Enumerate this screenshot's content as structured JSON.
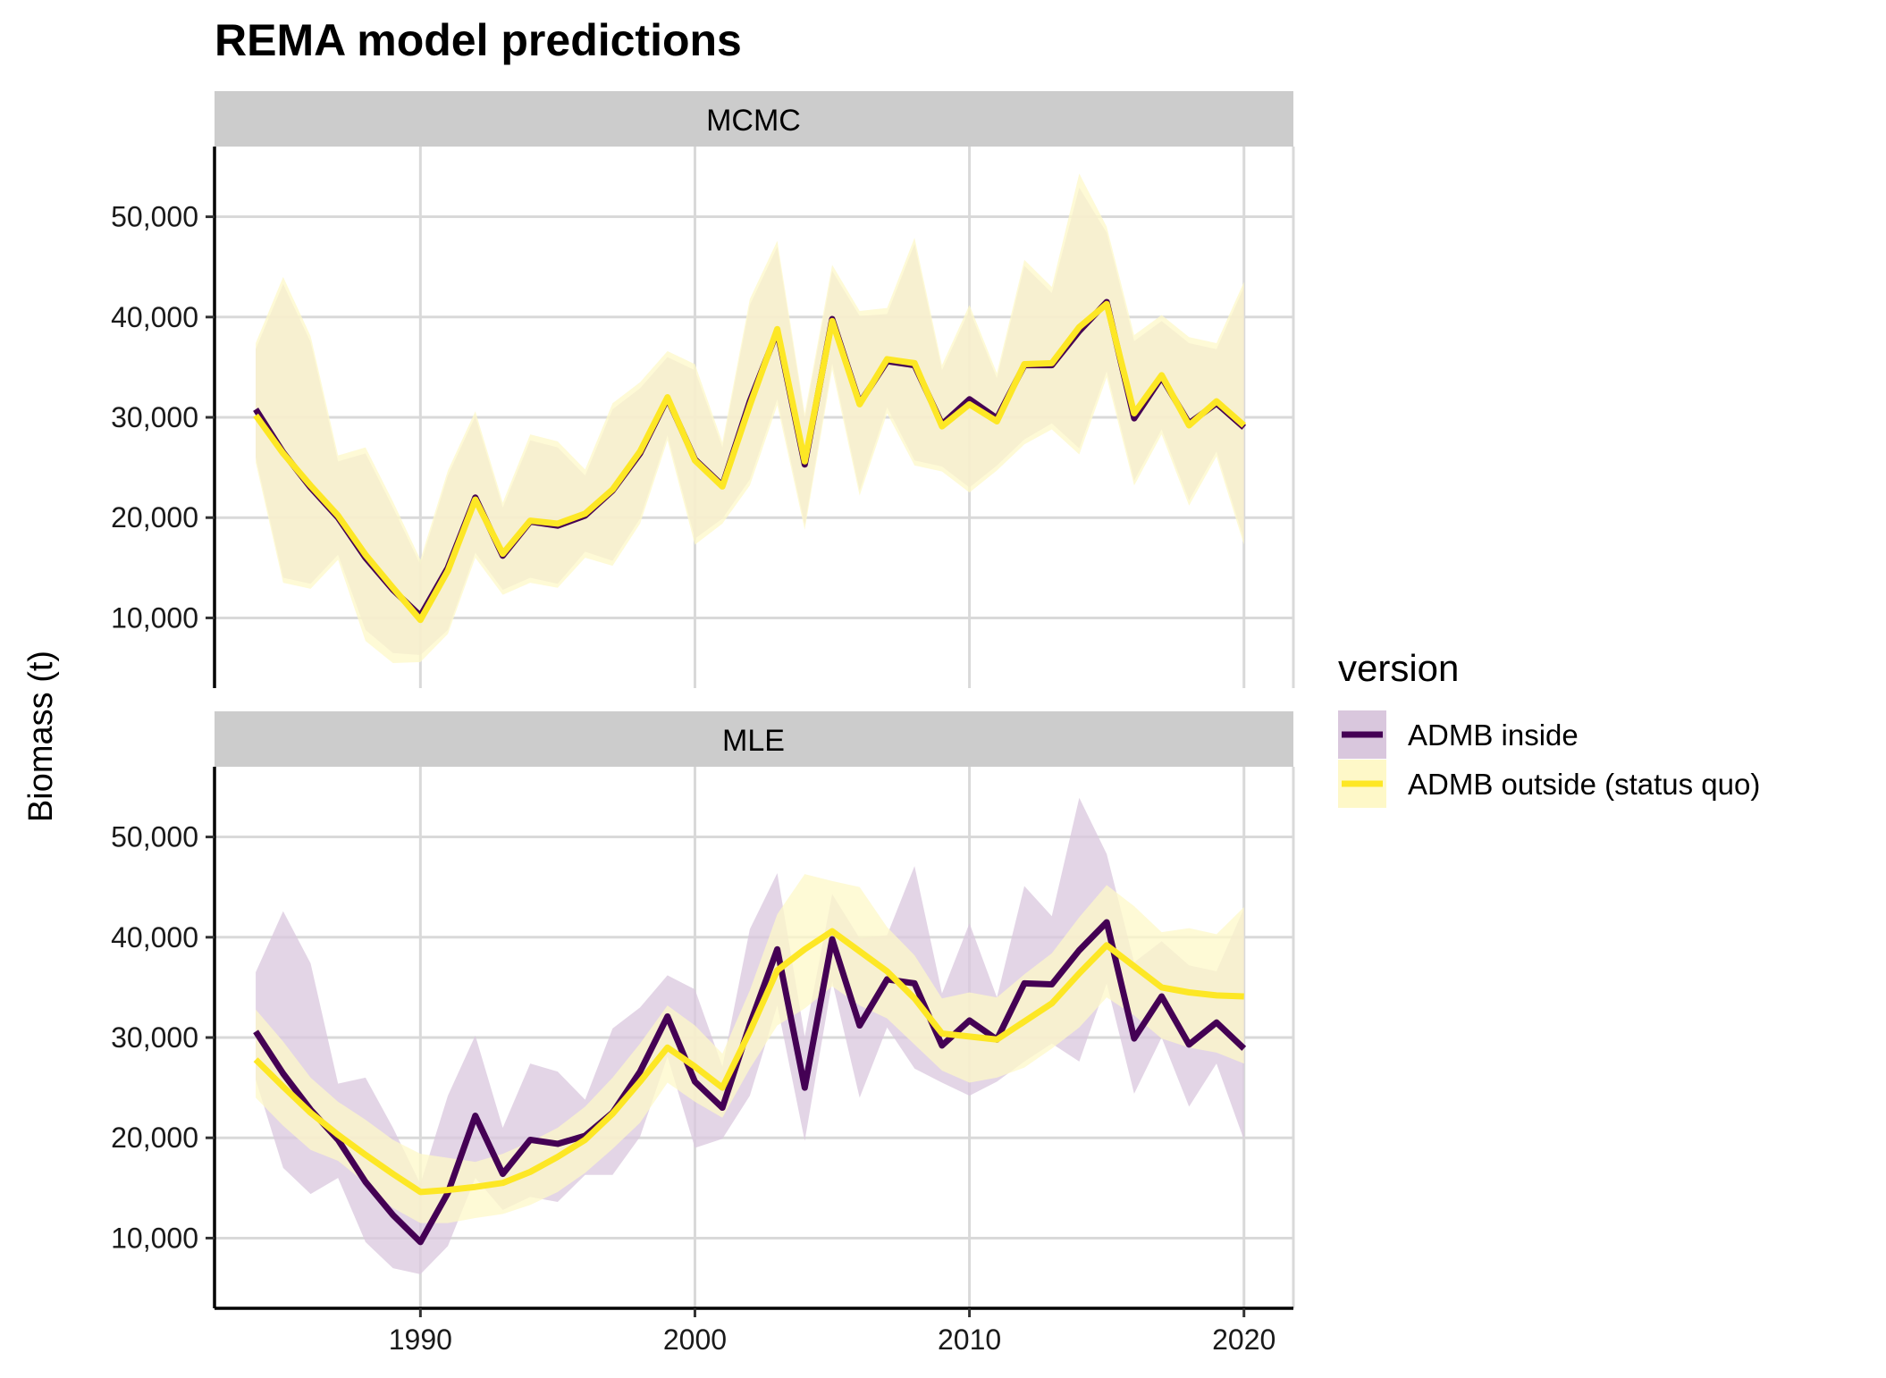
{
  "chart_data": {
    "type": "line",
    "title": "REMA model predictions",
    "ylabel": "Biomass (t)",
    "xlabel": "",
    "xlim": [
      1982.5,
      2021.8
    ],
    "ylim": [
      3000,
      57000
    ],
    "x_ticks": [
      1990,
      2000,
      2010,
      2020
    ],
    "x_tick_labels": [
      "1990",
      "2000",
      "2010",
      "2020"
    ],
    "y_ticks": [
      10000,
      20000,
      30000,
      40000,
      50000
    ],
    "y_tick_labels": [
      "10,000",
      "20,000",
      "30,000",
      "40,000",
      "50,000"
    ],
    "grid": true,
    "legend": {
      "title": "version",
      "position": "right",
      "entries": [
        {
          "label": "ADMB inside",
          "line_color": "#440154",
          "fill_color": "#d9c7dd"
        },
        {
          "label": "ADMB outside (status quo)",
          "line_color": "#fde725",
          "fill_color": "#fef8c8"
        }
      ]
    },
    "years": [
      1984,
      1985,
      1986,
      1987,
      1988,
      1989,
      1990,
      1991,
      1992,
      1993,
      1994,
      1995,
      1996,
      1997,
      1998,
      1999,
      2000,
      2001,
      2002,
      2003,
      2004,
      2005,
      2006,
      2007,
      2008,
      2009,
      2010,
      2011,
      2012,
      2013,
      2014,
      2015,
      2016,
      2017,
      2018,
      2019,
      2020
    ],
    "panels": [
      {
        "name": "MCMC",
        "series": [
          {
            "name": "ADMB inside",
            "color": "#440154",
            "fill": "#d9c7dd",
            "values": [
              30800,
              26500,
              23000,
              20000,
              16000,
              12800,
              10200,
              15000,
              22000,
              16200,
              19600,
              19200,
              20200,
              22700,
              26400,
              31900,
              25800,
              23200,
              31600,
              38600,
              25300,
              39800,
              31400,
              35600,
              35200,
              29300,
              31800,
              29900,
              35200,
              35200,
              38600,
              41500,
              29900,
              34000,
              29400,
              31400,
              29000
            ],
            "lower": [
              26000,
              14000,
              13400,
              16300,
              8800,
              6500,
              6300,
              8800,
              16500,
              12800,
              14000,
              13400,
              16600,
              15700,
              19900,
              28200,
              17900,
              19900,
              23800,
              31800,
              19300,
              35400,
              22700,
              31000,
              25700,
              25100,
              23000,
              25200,
              27800,
              29400,
              26900,
              34600,
              23700,
              28800,
              21700,
              26600,
              17800
            ],
            "upper": [
              36800,
              43300,
              37500,
              25600,
              26400,
              21000,
              15300,
              24200,
              30100,
              21000,
              27700,
              27000,
              24200,
              30800,
              32900,
              36000,
              34700,
              27000,
              41200,
              47000,
              29900,
              44600,
              40100,
              40300,
              47300,
              34700,
              40700,
              33900,
              45100,
              42400,
              52900,
              48400,
              37600,
              39600,
              37400,
              36800,
              43000
            ]
          },
          {
            "name": "ADMB outside (status quo)",
            "color": "#fde725",
            "fill": "#fef8c8",
            "values": [
              30200,
              26400,
              23200,
              20200,
              16300,
              13000,
              9800,
              14700,
              21800,
              16400,
              19700,
              19400,
              20400,
              22800,
              26600,
              32000,
              25700,
              23100,
              31200,
              38800,
              25600,
              39600,
              31300,
              35800,
              35400,
              29100,
              31300,
              29600,
              35300,
              35400,
              39000,
              41300,
              30400,
              34200,
              29200,
              31600,
              29200
            ],
            "lower": [
              25500,
              13500,
              12900,
              15800,
              7700,
              5500,
              5600,
              8400,
              16000,
              12300,
              13500,
              13000,
              16000,
              15200,
              19400,
              27700,
              17300,
              19400,
              23200,
              31200,
              18800,
              34800,
              22200,
              30400,
              25200,
              24600,
              22500,
              24700,
              27300,
              28800,
              26300,
              34000,
              23200,
              28300,
              21200,
              26100,
              17300
            ],
            "upper": [
              37400,
              44000,
              38100,
              26200,
              27000,
              21600,
              15800,
              24700,
              30600,
              21500,
              28300,
              27600,
              24800,
              31400,
              33500,
              36600,
              35300,
              27500,
              41800,
              47600,
              30400,
              45200,
              40600,
              40900,
              47900,
              35200,
              41200,
              34400,
              45700,
              43000,
              54300,
              49000,
              38200,
              40200,
              38000,
              37400,
              43500
            ]
          }
        ]
      },
      {
        "name": "MLE",
        "series": [
          {
            "name": "ADMB inside",
            "color": "#440154",
            "fill": "#d9c7dd",
            "values": [
              30600,
              26400,
              22800,
              19800,
              15600,
              12300,
              9600,
              14500,
              22200,
              16400,
              19800,
              19400,
              20200,
              22500,
              26600,
              32100,
              25600,
              23000,
              31300,
              38800,
              25000,
              39800,
              31200,
              35800,
              35400,
              29200,
              31700,
              29800,
              35400,
              35300,
              38700,
              41500,
              29900,
              34100,
              29300,
              31500,
              28900
            ],
            "lower": [
              25800,
              17000,
              14400,
              16000,
              9600,
              7000,
              6400,
              9200,
              16000,
              12800,
              14100,
              13600,
              16300,
              16300,
              20100,
              28100,
              19000,
              19900,
              24200,
              33200,
              19700,
              35600,
              24000,
              31000,
              26900,
              25500,
              24200,
              25600,
              27600,
              29400,
              27600,
              35400,
              24400,
              30000,
              23100,
              27400,
              19800
            ],
            "upper": [
              36500,
              42600,
              37400,
              25400,
              26000,
              21000,
              15400,
              24200,
              30200,
              21000,
              27400,
              26600,
              23800,
              30900,
              33000,
              36200,
              34800,
              27100,
              40800,
              46400,
              30100,
              44300,
              39900,
              40200,
              47100,
              34400,
              41400,
              34000,
              45100,
              42100,
              53900,
              48300,
              37500,
              39600,
              37200,
              36600,
              42900
            ]
          },
          {
            "name": "ADMB outside (status quo)",
            "color": "#fde725",
            "fill": "#fef8c8",
            "values": [
              27800,
              25100,
              22500,
              20300,
              18300,
              16400,
              14600,
              14800,
              15100,
              15500,
              16600,
              18100,
              19800,
              22400,
              25600,
              29000,
              27100,
              25000,
              30600,
              36700,
              38800,
              40600,
              38600,
              36600,
              33900,
              30400,
              30100,
              29800,
              31600,
              33400,
              36400,
              39200,
              37100,
              35000,
              34500,
              34200,
              34100
            ],
            "lower": [
              24000,
              21200,
              18800,
              17700,
              15500,
              13000,
              11500,
              11500,
              12000,
              12400,
              13300,
              14600,
              16500,
              18900,
              21500,
              25500,
              23600,
              22000,
              26900,
              31200,
              32900,
              35100,
              33200,
              31900,
              29300,
              26700,
              25500,
              26000,
              27000,
              28900,
              31000,
              34000,
              32200,
              29900,
              29000,
              28500,
              27400
            ],
            "upper": [
              32800,
              29600,
              26000,
              23600,
              21800,
              19800,
              18400,
              18000,
              17600,
              18400,
              19600,
              21000,
              23100,
              26000,
              29400,
              33200,
              31200,
              28400,
              34700,
              42300,
              46300,
              45600,
              45000,
              41000,
              38200,
              33900,
              34500,
              34000,
              36300,
              38400,
              42000,
              45200,
              43100,
              40500,
              40900,
              40300,
              43000
            ]
          }
        ]
      }
    ]
  }
}
